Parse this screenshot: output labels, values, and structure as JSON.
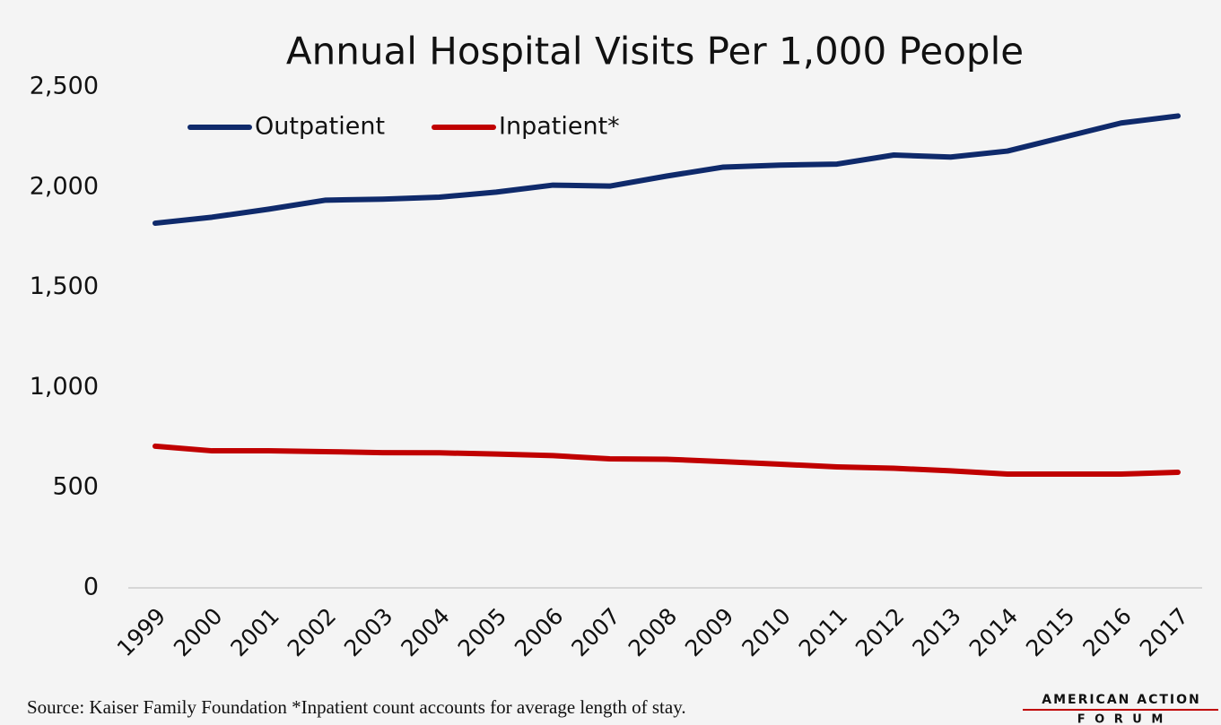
{
  "chart_data": {
    "type": "line",
    "title": "Annual Hospital Visits Per 1,000 People",
    "categories": [
      "1999",
      "2000",
      "2001",
      "2002",
      "2003",
      "2004",
      "2005",
      "2006",
      "2007",
      "2008",
      "2009",
      "2010",
      "2011",
      "2012",
      "2013",
      "2014",
      "2015",
      "2016",
      "2017"
    ],
    "series": [
      {
        "name": "Outpatient",
        "color": "#0f2a6b",
        "values": [
          1820,
          1850,
          1890,
          1935,
          1940,
          1950,
          1975,
          2010,
          2005,
          2055,
          2100,
          2110,
          2115,
          2160,
          2150,
          2180,
          2250,
          2320,
          2355
        ]
      },
      {
        "name": "Inpatient*",
        "color": "#c00000",
        "values": [
          707,
          684,
          684,
          680,
          675,
          674,
          668,
          660,
          644,
          642,
          630,
          617,
          604,
          597,
          584,
          568,
          568,
          568,
          577
        ]
      }
    ],
    "ylim": [
      0,
      2500
    ],
    "yticks": [
      0,
      500,
      {
        "value": 1000,
        "label": "1,000"
      },
      {
        "value": 1500,
        "label": "1,500"
      },
      {
        "value": 2000,
        "label": "2,000"
      },
      {
        "value": 2500,
        "label": "2,500"
      }
    ],
    "grid": false,
    "legend": "top-left",
    "source": "Source: Kaiser Family Foundation *Inpatient count accounts for average length of stay.",
    "logo": [
      "AMERICAN ACTION",
      "F O R U M"
    ]
  }
}
